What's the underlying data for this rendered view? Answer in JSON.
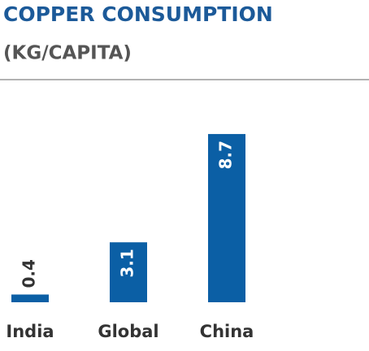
{
  "chart_data": {
    "type": "bar",
    "title": "COPPER CONSUMPTION",
    "subtitle": "(KG/CAPITA)",
    "categories": [
      "India",
      "Global",
      "China"
    ],
    "values": [
      0.4,
      3.1,
      8.7
    ],
    "color": "#0b5fa5"
  }
}
